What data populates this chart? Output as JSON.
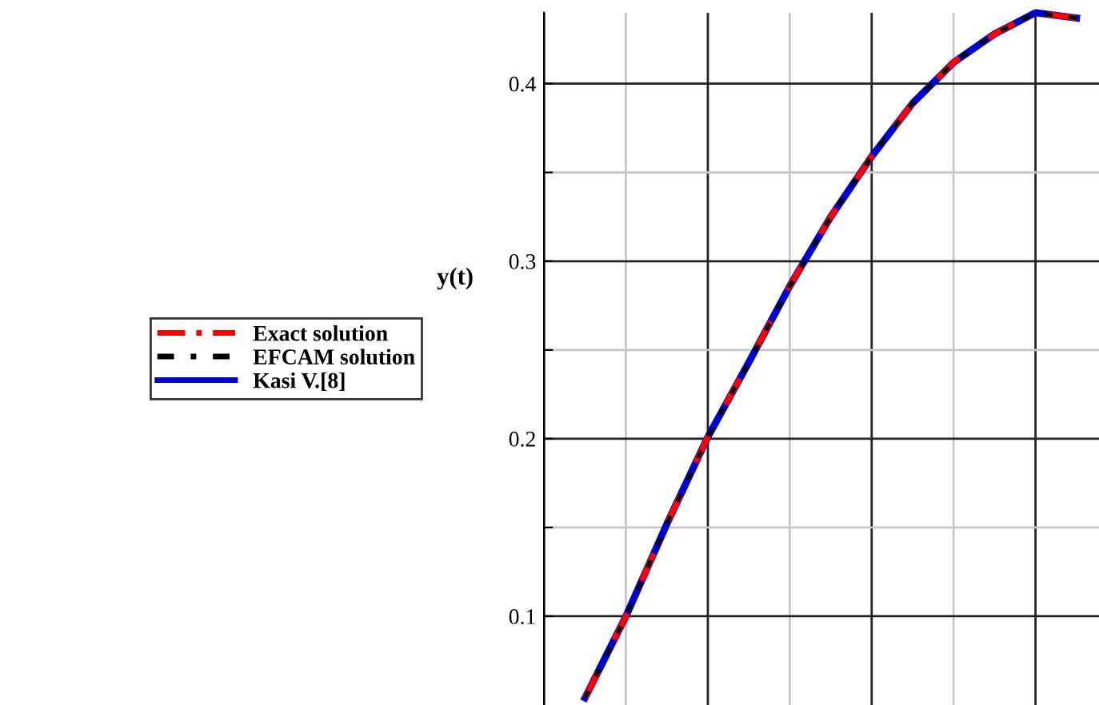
{
  "chart_data": {
    "type": "line",
    "ylabel": "y(t)",
    "categories": [
      null,
      null,
      null,
      null,
      null,
      null,
      null,
      null,
      null,
      null,
      null,
      null,
      null
    ],
    "series": [
      {
        "name": "Exact solution",
        "color": "#ff0000",
        "line_style": "dashed",
        "values": [
          0.054,
          0.1,
          0.152,
          0.201,
          0.243,
          0.286,
          0.325,
          0.359,
          0.389,
          0.412,
          0.428,
          0.44,
          0.437
        ]
      },
      {
        "name": "EFCAM solution",
        "color": "#000000",
        "line_style": "dotted",
        "values": [
          0.054,
          0.1,
          0.152,
          0.201,
          0.243,
          0.286,
          0.325,
          0.359,
          0.389,
          0.412,
          0.428,
          0.44,
          0.437
        ]
      },
      {
        "name": "Kasi V.[8]",
        "color": "#0000cc",
        "line_style": "solid",
        "values": [
          0.054,
          0.1,
          0.152,
          0.201,
          0.243,
          0.286,
          0.325,
          0.359,
          0.389,
          0.412,
          0.428,
          0.44,
          0.437
        ]
      }
    ],
    "ylim": [
      0.05,
      0.44
    ],
    "yticks": [
      0.1,
      {
        "value": 0.15,
        "label": null
      },
      0.2,
      {
        "value": 0.25,
        "label": null
      },
      0.3,
      {
        "value": 0.35,
        "label": null
      },
      0.4
    ],
    "tick_labels": "y",
    "grid": true,
    "legend": "left"
  }
}
